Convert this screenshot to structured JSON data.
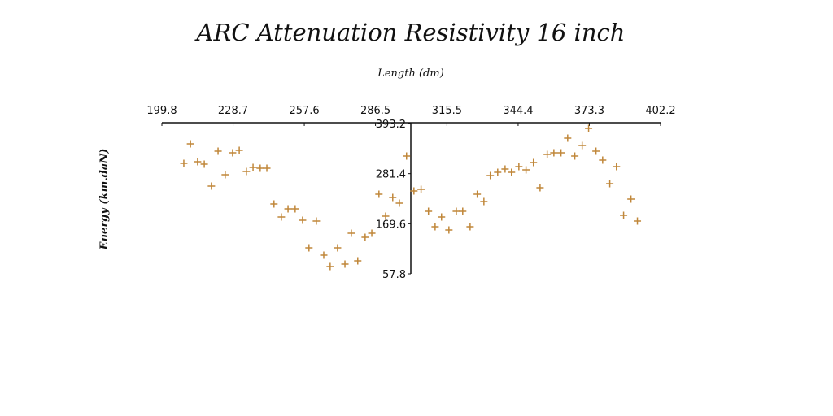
{
  "chart_data": {
    "type": "scatter",
    "title": "ARC Attenuation Resistivity 16 inch",
    "x_label": "Length (dm)",
    "y_label": "Energy (km.daN)",
    "color": "#c0873a",
    "xlim": [
      199.8,
      402.2
    ],
    "xticks": [
      199.8,
      228.7,
      257.6,
      286.5,
      315.5,
      344.4,
      373.3,
      402.2
    ],
    "ylim": [
      57.8,
      393.2
    ],
    "yticks": [
      57.8,
      169.6,
      281.4,
      393.2
    ],
    "x": [
      208.7,
      211.4,
      214.3,
      217.0,
      219.9,
      222.6,
      225.5,
      228.5,
      231.2,
      234.1,
      236.8,
      239.7,
      242.4,
      245.3,
      248.3,
      251.0,
      253.9,
      256.9,
      262.5,
      259.5,
      265.5,
      268.1,
      271.1,
      274.1,
      276.7,
      279.3,
      282.3,
      285.0,
      287.9,
      290.6,
      293.5,
      296.2,
      299.1,
      302.1,
      305.0,
      308.0,
      310.7,
      313.3,
      316.3,
      319.3,
      321.9,
      324.9,
      327.8,
      330.5,
      333.1,
      336.1,
      339.1,
      341.7,
      344.7,
      347.6,
      350.6,
      353.3,
      356.2,
      358.9,
      361.8,
      364.5,
      367.4,
      370.4,
      373.0,
      376.0,
      378.7,
      381.6,
      384.3,
      387.2,
      390.2,
      392.8
    ],
    "values": [
      304.4,
      347.9,
      308.0,
      302.6,
      253.6,
      331.6,
      279.0,
      327.9,
      333.4,
      286.2,
      295.3,
      293.5,
      293.5,
      213.7,
      184.7,
      202.8,
      202.8,
      177.4,
      175.6,
      115.8,
      99.5,
      74.1,
      115.8,
      79.5,
      148.4,
      86.8,
      139.4,
      148.4,
      235.5,
      186.5,
      228.2,
      215.5,
      320.7,
      242.7,
      246.3,
      197.4,
      163.0,
      184.7,
      155.7,
      197.4,
      197.4,
      163.0,
      235.5,
      219.2,
      277.2,
      284.4,
      291.7,
      284.4,
      297.1,
      289.9,
      306.2,
      250.0,
      324.3,
      327.9,
      327.9,
      360.6,
      320.7,
      344.3,
      382.3,
      331.6,
      311.6,
      259.0,
      297.1,
      188.3,
      224.6,
      175.6
    ]
  }
}
